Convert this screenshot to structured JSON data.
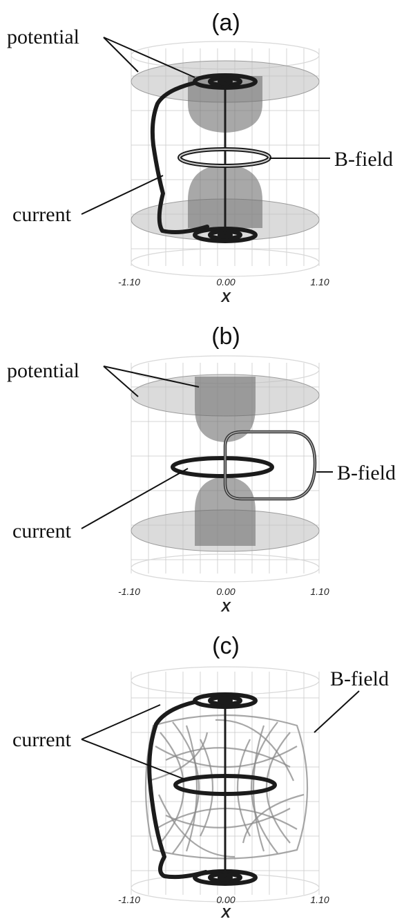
{
  "panels": [
    {
      "title": "(a)",
      "labels": {
        "potential": "potential",
        "bfield": "B-field",
        "current": "current"
      },
      "axis": {
        "ticks": [
          "-1.10",
          "0.00",
          "1.10"
        ],
        "name": "X"
      }
    },
    {
      "title": "(b)",
      "labels": {
        "potential": "potential",
        "bfield": "B-field",
        "current": "current"
      },
      "axis": {
        "ticks": [
          "-1.10",
          "0.00",
          "1.10"
        ],
        "name": "X"
      }
    },
    {
      "title": "(c)",
      "labels": {
        "bfield": "B-field",
        "current": "current"
      },
      "axis": {
        "ticks": [
          "-1.10",
          "0.00",
          "1.10"
        ],
        "name": "X"
      }
    }
  ]
}
